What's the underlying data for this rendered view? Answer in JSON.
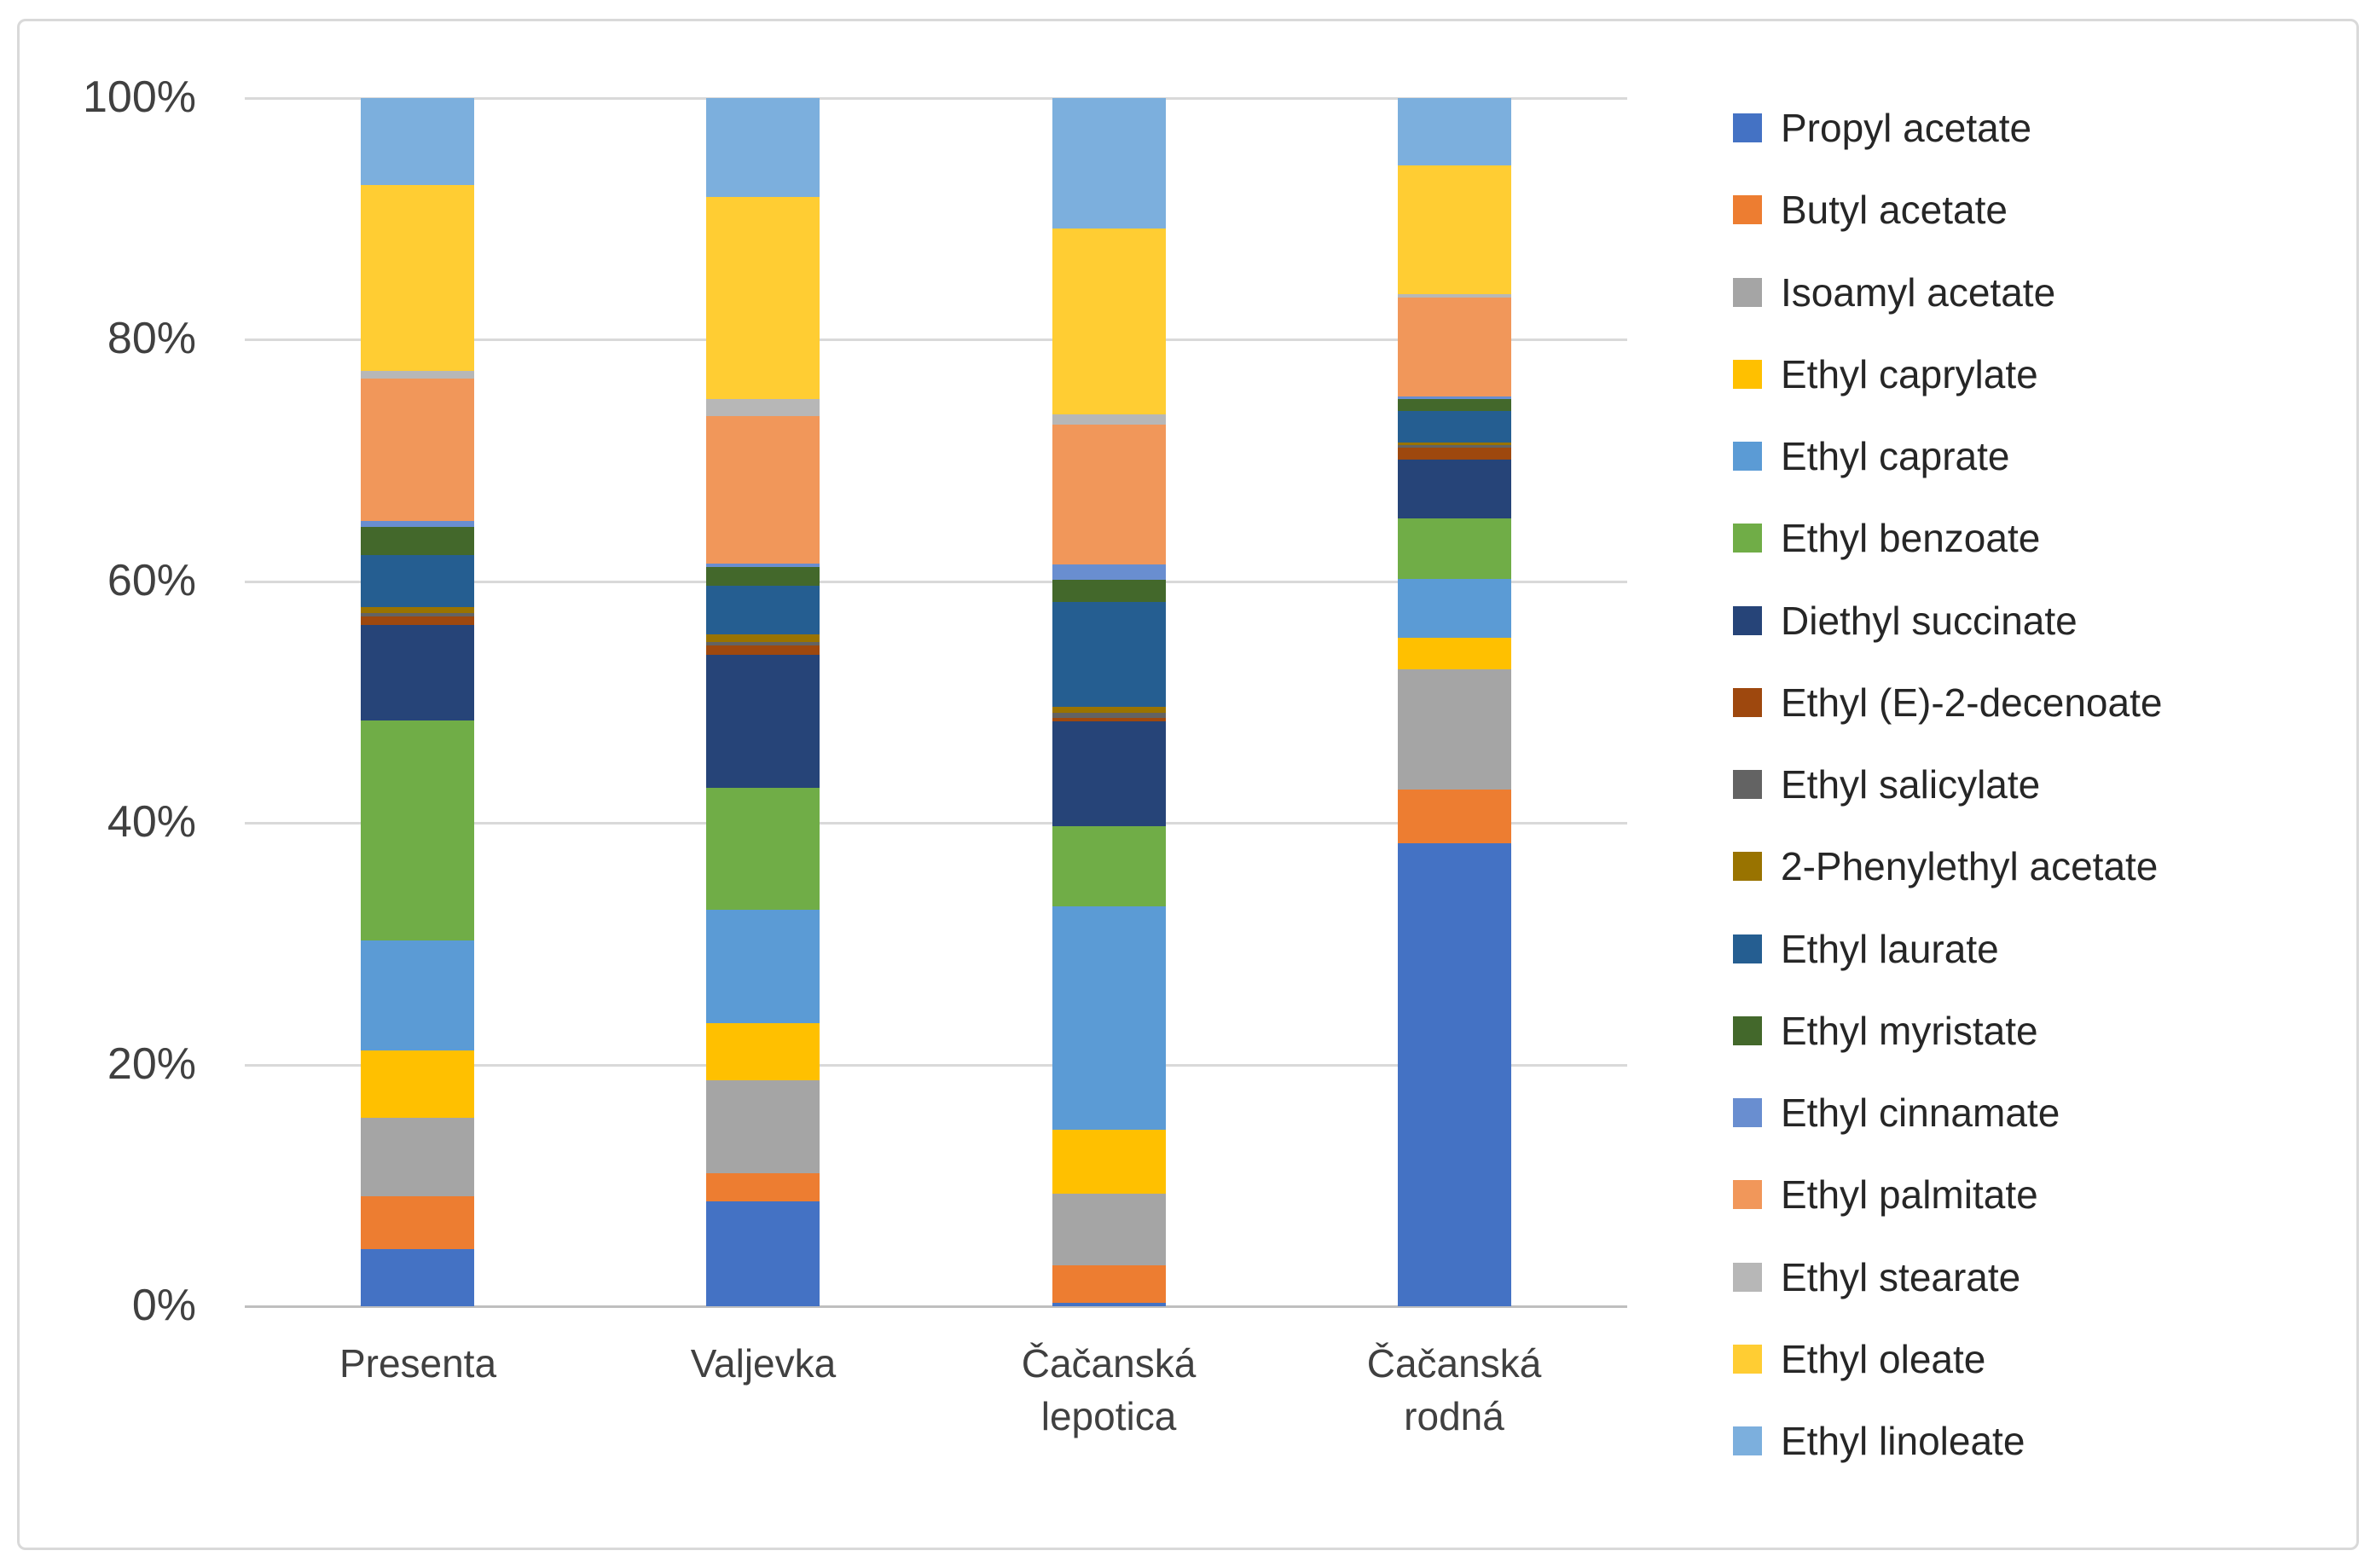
{
  "chart_data": {
    "type": "bar",
    "variant": "stacked-100-percent-column",
    "title": "",
    "xlabel": "",
    "ylabel": "",
    "ylim": [
      0,
      100
    ],
    "grid": true,
    "legend_position": "right",
    "y_ticks": [
      {
        "value": 0,
        "label": "0%"
      },
      {
        "value": 20,
        "label": "20%"
      },
      {
        "value": 40,
        "label": "40%"
      },
      {
        "value": 60,
        "label": "60%"
      },
      {
        "value": 80,
        "label": "80%"
      },
      {
        "value": 100,
        "label": "100%"
      }
    ],
    "categories": [
      "Presenta",
      "Valjevka",
      "Čačanská lepotica",
      "Čačanská rodná"
    ],
    "category_label_lines": [
      [
        "Presenta"
      ],
      [
        "Valjevka"
      ],
      [
        "Čačanská",
        "lepotica"
      ],
      [
        "Čačanská",
        "rodná"
      ]
    ],
    "series": [
      {
        "name": "Propyl acetate",
        "color": "#4472C4",
        "values": [
          4.7,
          8.7,
          0.3,
          38.3
        ]
      },
      {
        "name": "Butyl acetate",
        "color": "#ED7D31",
        "values": [
          4.4,
          2.3,
          3.1,
          4.5
        ]
      },
      {
        "name": "Isoamyl acetate",
        "color": "#A5A5A5",
        "values": [
          6.5,
          7.7,
          5.9,
          9.9
        ]
      },
      {
        "name": "Ethyl caprylate",
        "color": "#FFC000",
        "values": [
          5.6,
          4.7,
          5.3,
          2.6
        ]
      },
      {
        "name": "Ethyl caprate",
        "color": "#5B9BD5",
        "values": [
          9.1,
          9.4,
          18.5,
          4.9
        ]
      },
      {
        "name": "Ethyl benzoate",
        "color": "#70AD47",
        "values": [
          18.2,
          10.1,
          6.6,
          5.0
        ]
      },
      {
        "name": "Diethyl succinate",
        "color": "#264478",
        "values": [
          7.9,
          11.0,
          8.7,
          4.9
        ]
      },
      {
        "name": "Ethyl (E)-2-decenoate",
        "color": "#9E480E",
        "values": [
          0.7,
          0.8,
          0.3,
          1.0
        ]
      },
      {
        "name": "Ethyl salicylate",
        "color": "#636363",
        "values": [
          0.3,
          0.3,
          0.4,
          0.2
        ]
      },
      {
        "name": "2-Phenylethyl acetate",
        "color": "#997300",
        "values": [
          0.5,
          0.6,
          0.5,
          0.2
        ]
      },
      {
        "name": "Ethyl laurate",
        "color": "#255E91",
        "values": [
          4.3,
          4.0,
          8.7,
          2.6
        ]
      },
      {
        "name": "Ethyl myristate",
        "color": "#43682B",
        "values": [
          2.3,
          1.6,
          1.8,
          1.0
        ]
      },
      {
        "name": "Ethyl cinnamate",
        "color": "#698ED0",
        "values": [
          0.5,
          0.3,
          1.3,
          0.2
        ]
      },
      {
        "name": "Ethyl palmitate",
        "color": "#F1975A",
        "values": [
          11.8,
          12.2,
          11.6,
          8.2
        ]
      },
      {
        "name": "Ethyl stearate",
        "color": "#B7B7B7",
        "values": [
          0.6,
          1.4,
          0.8,
          0.3
        ]
      },
      {
        "name": "Ethyl oleate",
        "color": "#FFCD33",
        "values": [
          15.4,
          16.7,
          15.4,
          10.6
        ]
      },
      {
        "name": "Ethyl linoleate",
        "color": "#7CAFDD",
        "values": [
          7.2,
          8.2,
          10.8,
          5.6
        ]
      }
    ]
  },
  "colors": {
    "background": "#FFFFFF",
    "chart_border": "#D9D9D9",
    "gridline": "#D9D9D9",
    "axis_line": "#BFBFBF",
    "tick_text": "#404040",
    "legend_text": "#262626"
  }
}
